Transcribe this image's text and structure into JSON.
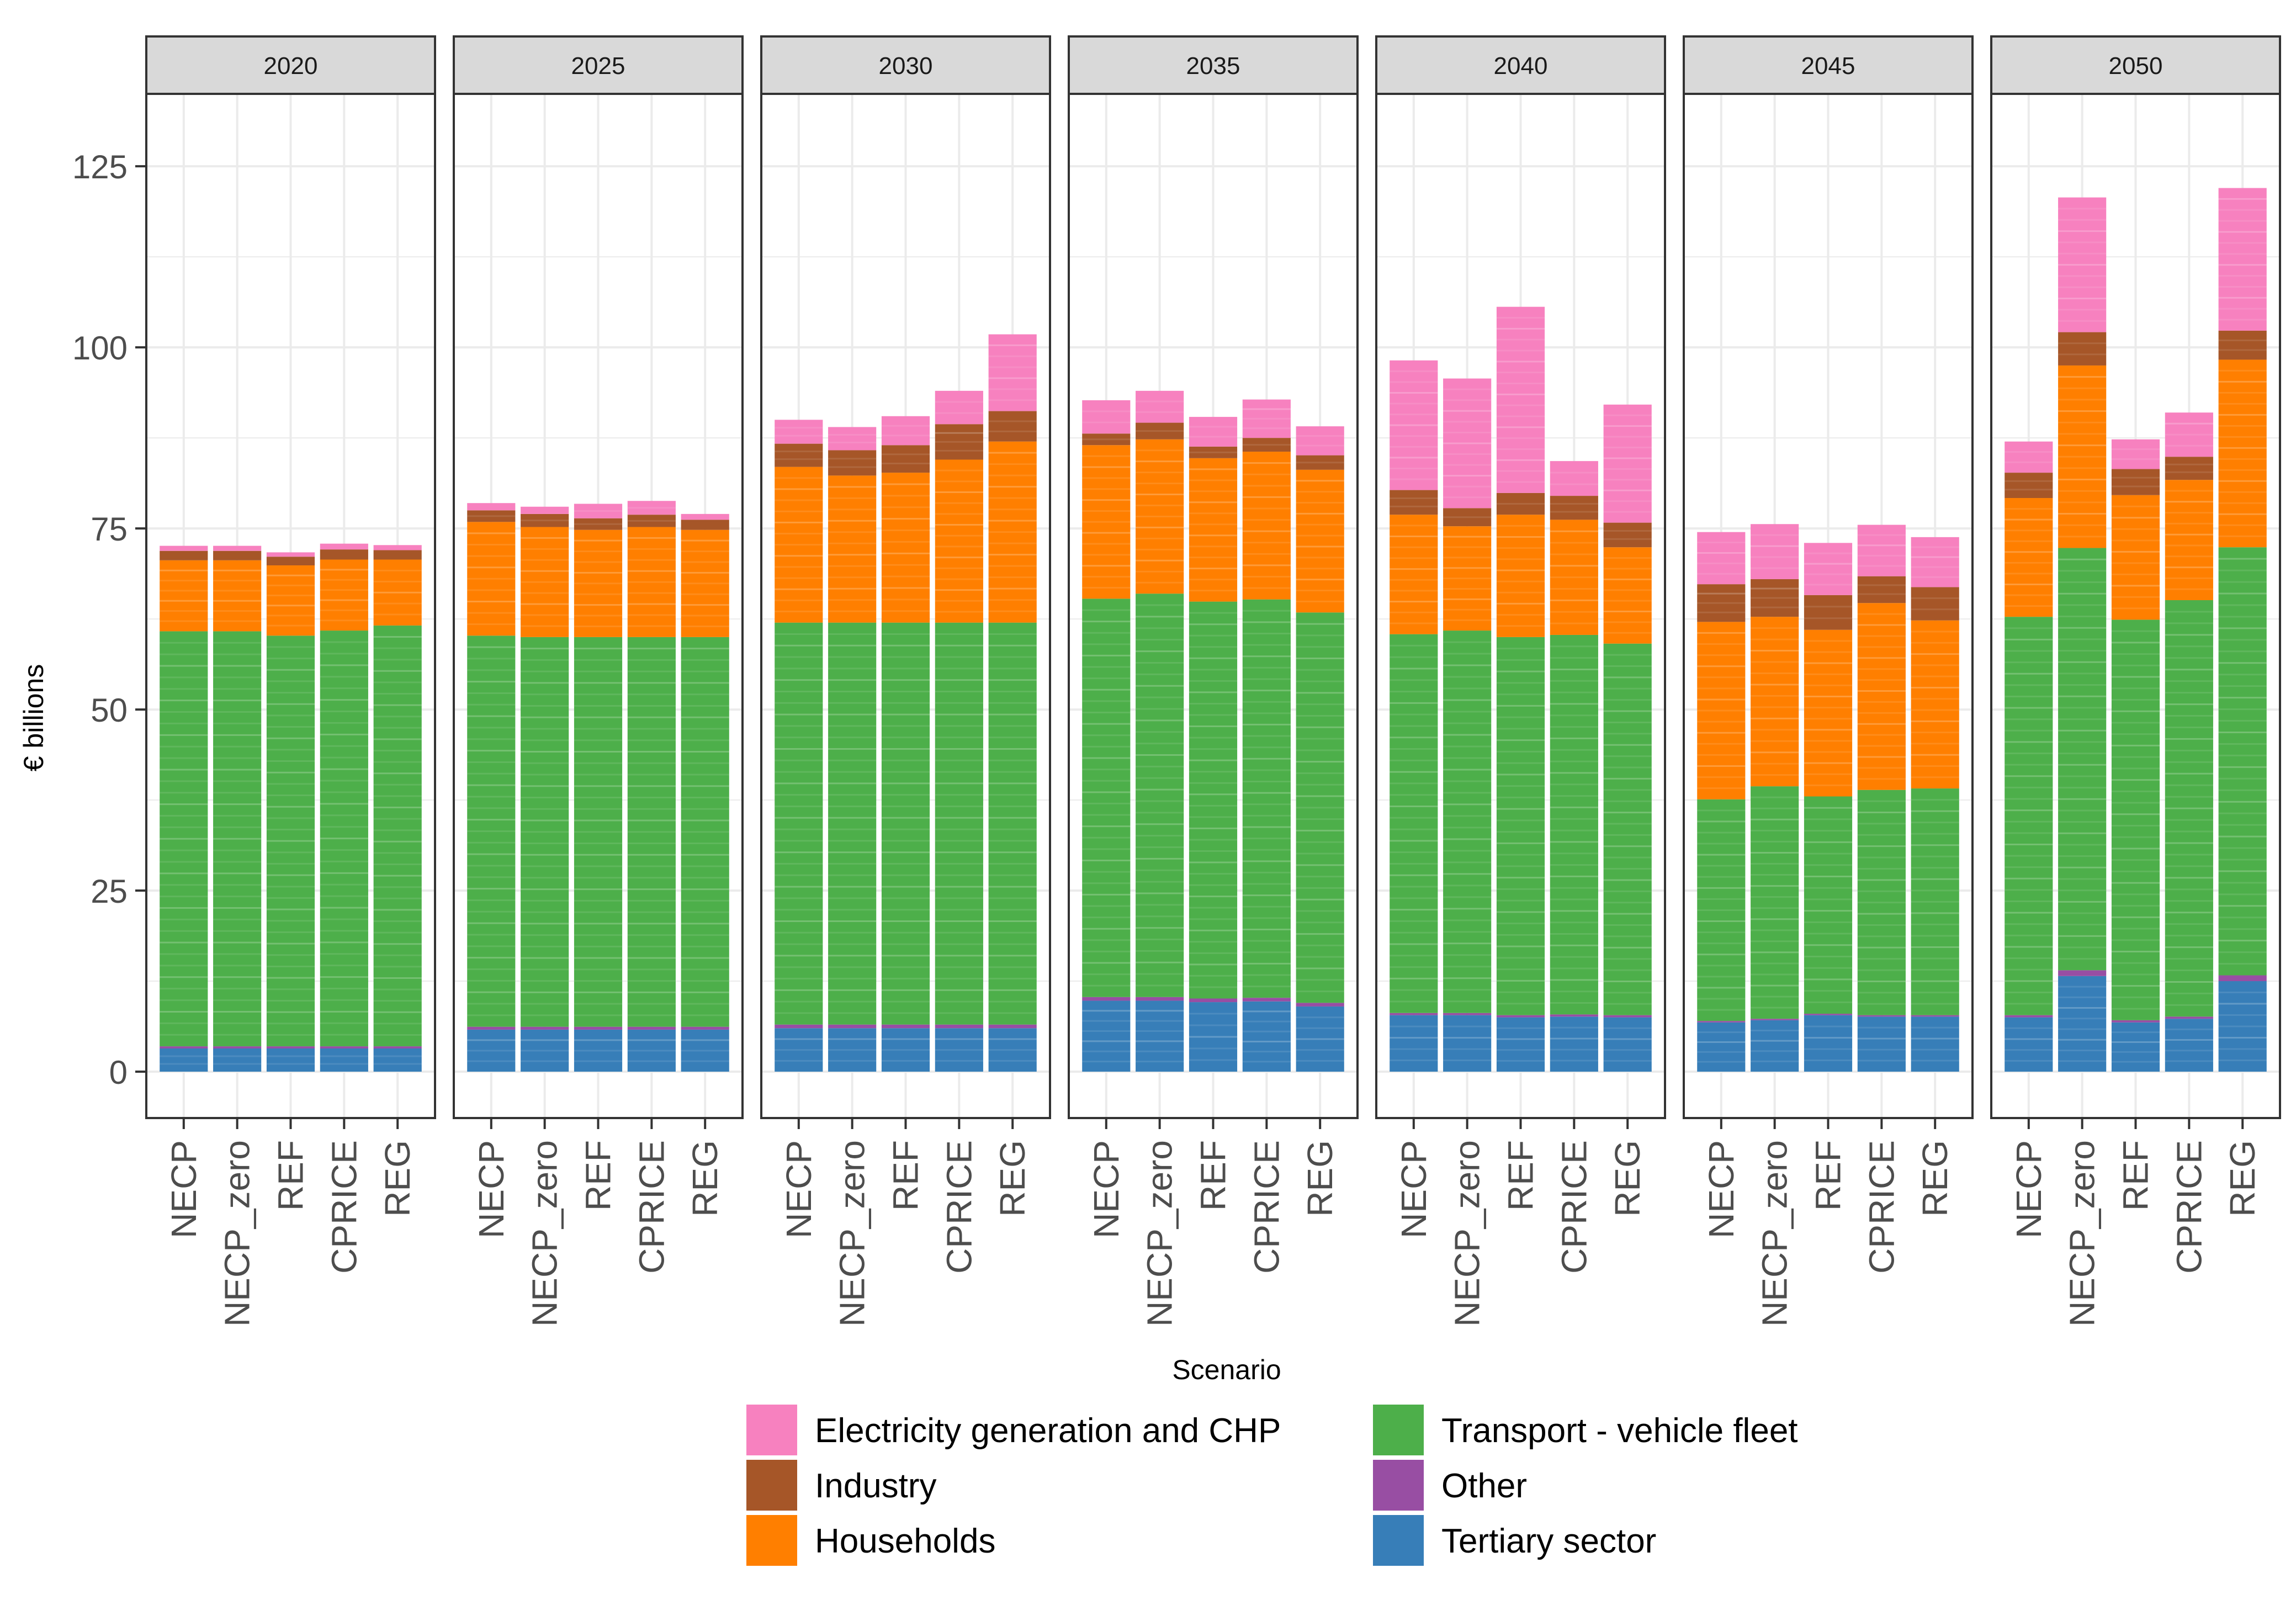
{
  "chart_data": {
    "type": "bar",
    "stacked": true,
    "faceted_by": "year",
    "xlabel": "Scenario",
    "ylabel": "€ billions",
    "ylim": [
      -6,
      135
    ],
    "yticks": [
      0,
      25,
      50,
      75,
      100,
      125
    ],
    "grid": true,
    "legend_position": "bottom",
    "categories": [
      "NECP",
      "NECP_zero",
      "REF",
      "CPRICE",
      "REG"
    ],
    "series": [
      {
        "name": "Tertiary sector",
        "key": "tertiary",
        "color": "#377EB8"
      },
      {
        "name": "Other",
        "key": "other",
        "color": "#984EA3"
      },
      {
        "name": "Transport - vehicle fleet",
        "key": "transport",
        "color": "#4DAF4A"
      },
      {
        "name": "Households",
        "key": "households",
        "color": "#FF7F00"
      },
      {
        "name": "Industry",
        "key": "industry",
        "color": "#A65628"
      },
      {
        "name": "Electricity generation and CHP",
        "key": "electricity",
        "color": "#F781BF"
      }
    ],
    "legend_order": [
      [
        "Electricity generation and CHP",
        "Industry",
        "Households"
      ],
      [
        "Transport - vehicle fleet",
        "Other",
        "Tertiary sector"
      ]
    ],
    "panels": [
      {
        "year": "2020",
        "bars": [
          {
            "scenario": "NECP",
            "tertiary": 3.2,
            "other": 0.3,
            "transport": 57.3,
            "households": 9.8,
            "industry": 1.3,
            "electricity": 0.7
          },
          {
            "scenario": "NECP_zero",
            "tertiary": 3.2,
            "other": 0.3,
            "transport": 57.3,
            "households": 9.8,
            "industry": 1.3,
            "electricity": 0.7
          },
          {
            "scenario": "REF",
            "tertiary": 3.2,
            "other": 0.3,
            "transport": 56.7,
            "households": 9.7,
            "industry": 1.2,
            "electricity": 0.6
          },
          {
            "scenario": "CPRICE",
            "tertiary": 3.2,
            "other": 0.3,
            "transport": 57.4,
            "households": 9.8,
            "industry": 1.4,
            "electricity": 0.8
          },
          {
            "scenario": "REG",
            "tertiary": 3.2,
            "other": 0.3,
            "transport": 58.1,
            "households": 9.1,
            "industry": 1.3,
            "electricity": 0.7
          }
        ]
      },
      {
        "year": "2025",
        "bars": [
          {
            "scenario": "NECP",
            "tertiary": 5.8,
            "other": 0.4,
            "transport": 54.0,
            "households": 15.7,
            "industry": 1.6,
            "electricity": 1.0
          },
          {
            "scenario": "NECP_zero",
            "tertiary": 5.8,
            "other": 0.4,
            "transport": 53.8,
            "households": 15.2,
            "industry": 1.8,
            "electricity": 1.0
          },
          {
            "scenario": "REF",
            "tertiary": 5.8,
            "other": 0.4,
            "transport": 53.8,
            "households": 14.8,
            "industry": 1.6,
            "electricity": 2.0
          },
          {
            "scenario": "CPRICE",
            "tertiary": 5.8,
            "other": 0.4,
            "transport": 53.8,
            "households": 15.2,
            "industry": 1.7,
            "electricity": 1.9
          },
          {
            "scenario": "REG",
            "tertiary": 5.8,
            "other": 0.4,
            "transport": 53.8,
            "households": 14.8,
            "industry": 1.4,
            "electricity": 0.8
          }
        ]
      },
      {
        "year": "2030",
        "bars": [
          {
            "scenario": "NECP",
            "tertiary": 6.0,
            "other": 0.5,
            "transport": 55.5,
            "households": 21.5,
            "industry": 3.2,
            "electricity": 3.3
          },
          {
            "scenario": "NECP_zero",
            "tertiary": 6.0,
            "other": 0.5,
            "transport": 55.5,
            "households": 20.3,
            "industry": 3.5,
            "electricity": 3.2
          },
          {
            "scenario": "REF",
            "tertiary": 6.0,
            "other": 0.5,
            "transport": 55.5,
            "households": 20.7,
            "industry": 3.8,
            "electricity": 4.0
          },
          {
            "scenario": "CPRICE",
            "tertiary": 6.0,
            "other": 0.5,
            "transport": 55.5,
            "households": 22.5,
            "industry": 4.9,
            "electricity": 4.6
          },
          {
            "scenario": "REG",
            "tertiary": 6.0,
            "other": 0.5,
            "transport": 55.5,
            "households": 25.0,
            "industry": 4.2,
            "electricity": 10.6
          }
        ]
      },
      {
        "year": "2035",
        "bars": [
          {
            "scenario": "NECP",
            "tertiary": 9.8,
            "other": 0.5,
            "transport": 55.0,
            "households": 21.2,
            "industry": 1.6,
            "electricity": 4.6
          },
          {
            "scenario": "NECP_zero",
            "tertiary": 9.8,
            "other": 0.5,
            "transport": 55.7,
            "households": 21.3,
            "industry": 2.3,
            "electricity": 4.4
          },
          {
            "scenario": "REF",
            "tertiary": 9.6,
            "other": 0.5,
            "transport": 54.8,
            "households": 19.8,
            "industry": 1.6,
            "electricity": 4.1
          },
          {
            "scenario": "CPRICE",
            "tertiary": 9.7,
            "other": 0.5,
            "transport": 55.0,
            "households": 20.4,
            "industry": 1.9,
            "electricity": 5.3
          },
          {
            "scenario": "REG",
            "tertiary": 9.0,
            "other": 0.5,
            "transport": 53.9,
            "households": 19.7,
            "industry": 2.0,
            "electricity": 4.0
          }
        ]
      },
      {
        "year": "2040",
        "bars": [
          {
            "scenario": "NECP",
            "tertiary": 7.8,
            "other": 0.3,
            "transport": 52.3,
            "households": 16.5,
            "industry": 3.4,
            "electricity": 17.9
          },
          {
            "scenario": "NECP_zero",
            "tertiary": 7.8,
            "other": 0.3,
            "transport": 52.8,
            "households": 14.4,
            "industry": 2.5,
            "electricity": 17.9
          },
          {
            "scenario": "REF",
            "tertiary": 7.5,
            "other": 0.3,
            "transport": 52.2,
            "households": 16.9,
            "industry": 3.0,
            "electricity": 25.7
          },
          {
            "scenario": "CPRICE",
            "tertiary": 7.6,
            "other": 0.3,
            "transport": 52.4,
            "households": 15.9,
            "industry": 3.3,
            "electricity": 4.8
          },
          {
            "scenario": "REG",
            "tertiary": 7.5,
            "other": 0.3,
            "transport": 51.3,
            "households": 13.3,
            "industry": 3.4,
            "electricity": 16.3
          }
        ]
      },
      {
        "year": "2045",
        "bars": [
          {
            "scenario": "NECP",
            "tertiary": 6.8,
            "other": 0.2,
            "transport": 30.6,
            "households": 24.5,
            "industry": 5.2,
            "electricity": 7.2
          },
          {
            "scenario": "NECP_zero",
            "tertiary": 7.1,
            "other": 0.2,
            "transport": 32.1,
            "households": 23.4,
            "industry": 5.2,
            "electricity": 7.6
          },
          {
            "scenario": "REF",
            "tertiary": 7.8,
            "other": 0.2,
            "transport": 30.0,
            "households": 23.0,
            "industry": 4.8,
            "electricity": 7.2
          },
          {
            "scenario": "CPRICE",
            "tertiary": 7.6,
            "other": 0.2,
            "transport": 31.1,
            "households": 25.8,
            "industry": 3.7,
            "electricity": 7.1
          },
          {
            "scenario": "REG",
            "tertiary": 7.6,
            "other": 0.2,
            "transport": 31.3,
            "households": 23.2,
            "industry": 4.6,
            "electricity": 6.9
          }
        ]
      },
      {
        "year": "2050",
        "bars": [
          {
            "scenario": "NECP",
            "tertiary": 7.5,
            "other": 0.3,
            "transport": 55.0,
            "households": 16.4,
            "industry": 3.5,
            "electricity": 4.3
          },
          {
            "scenario": "NECP_zero",
            "tertiary": 13.2,
            "other": 0.8,
            "transport": 58.3,
            "households": 25.2,
            "industry": 4.6,
            "electricity": 18.6
          },
          {
            "scenario": "REF",
            "tertiary": 6.8,
            "other": 0.3,
            "transport": 55.3,
            "households": 17.2,
            "industry": 3.6,
            "electricity": 4.1
          },
          {
            "scenario": "CPRICE",
            "tertiary": 7.3,
            "other": 0.3,
            "transport": 57.5,
            "households": 16.6,
            "industry": 3.2,
            "electricity": 6.1
          },
          {
            "scenario": "REG",
            "tertiary": 12.5,
            "other": 0.8,
            "transport": 59.1,
            "households": 25.9,
            "industry": 4.0,
            "electricity": 19.7
          }
        ]
      }
    ]
  }
}
